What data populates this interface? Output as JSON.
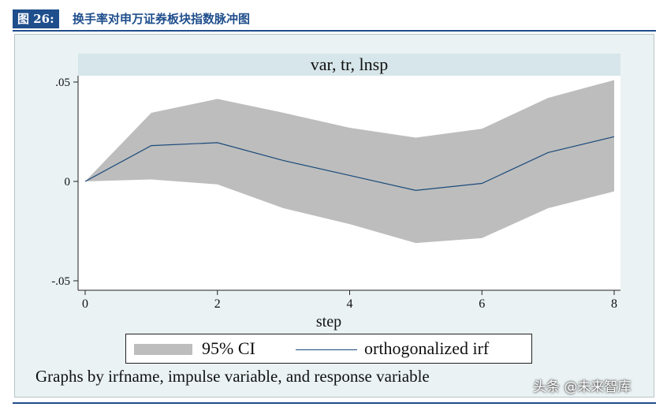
{
  "figure": {
    "tag": "图 26:",
    "title": "换手率对申万证券板块指数脉冲图"
  },
  "caption": "Graphs by irfname, impulse variable, and response variable",
  "watermark": "头条 @未来智库",
  "colors": {
    "header_blue": "#1f4e8c",
    "panel_bg": "#eaf2f3",
    "plot_bg": "#ffffff",
    "ci_fill": "#bdbdbd",
    "irf_line": "#1a4a7a",
    "subtitle_strip": "#d7e6ea"
  },
  "chart_data": {
    "type": "area",
    "title": "var, tr, lnsp",
    "xlabel": "step",
    "ylabel": "",
    "x": [
      0,
      1,
      2,
      3,
      4,
      5,
      6,
      7,
      8
    ],
    "xlim": [
      0,
      8
    ],
    "ylim": [
      -0.05,
      0.05
    ],
    "xticks": [
      0,
      2,
      4,
      6,
      8
    ],
    "xtick_labels": [
      "0",
      "2",
      "4",
      "6",
      "8"
    ],
    "yticks": [
      -0.05,
      0,
      0.05
    ],
    "ytick_labels": [
      "-.05",
      "0",
      ".05"
    ],
    "grid": false,
    "legend_position": "bottom",
    "series": [
      {
        "name": "95% CI",
        "kind": "band",
        "upper": [
          0,
          0.0345,
          0.0415,
          0.0345,
          0.027,
          0.022,
          0.0265,
          0.042,
          0.051
        ],
        "lower": [
          0,
          0.001,
          -0.0015,
          -0.0135,
          -0.0215,
          -0.031,
          -0.0285,
          -0.0135,
          -0.005
        ]
      },
      {
        "name": "orthogonalized irf",
        "kind": "line",
        "values": [
          0,
          0.018,
          0.0195,
          0.0105,
          0.003,
          -0.0045,
          -0.001,
          0.0145,
          0.0225
        ]
      }
    ]
  }
}
